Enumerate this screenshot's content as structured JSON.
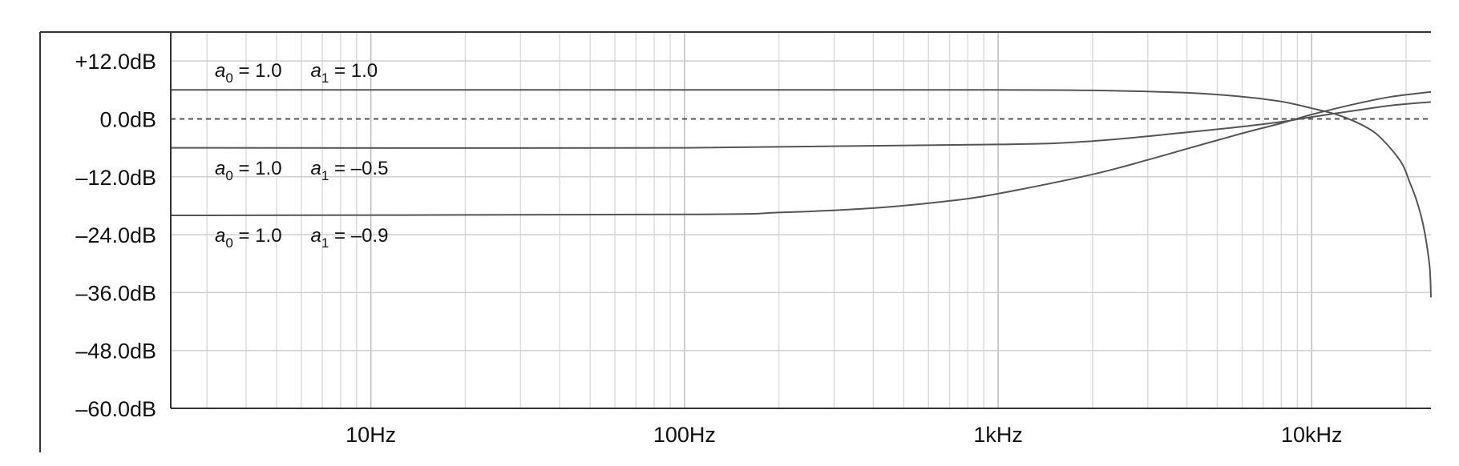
{
  "chart_data": {
    "type": "line",
    "title": "",
    "xlabel": "",
    "ylabel": "",
    "x_scale": "log",
    "xlim": [
      2.3,
      24000
    ],
    "ylim": [
      -60,
      18
    ],
    "grid": true,
    "x_ticks": [
      {
        "value": 10,
        "label": "10Hz"
      },
      {
        "value": 100,
        "label": "100Hz"
      },
      {
        "value": 1000,
        "label": "1kHz"
      },
      {
        "value": 10000,
        "label": "10kHz"
      }
    ],
    "y_ticks": [
      {
        "value": 12,
        "label": "+12.0dB"
      },
      {
        "value": 0,
        "label": "0.0dB"
      },
      {
        "value": -12,
        "label": "–12.0dB"
      },
      {
        "value": -24,
        "label": "–24.0dB"
      },
      {
        "value": -36,
        "label": "–36.0dB"
      },
      {
        "value": -48,
        "label": "–48.0dB"
      },
      {
        "value": -60,
        "label": "–60.0dB"
      }
    ],
    "reference_line": {
      "value": 0,
      "style": "dashed"
    },
    "series": [
      {
        "x": [
          2.3,
          100,
          1000,
          2000,
          4000,
          6000,
          8000,
          10000,
          12000,
          14000,
          16000,
          18000,
          19500,
          20500,
          21500,
          22500,
          23200,
          23800,
          24000
        ],
        "y": [
          6.0,
          6.0,
          6.0,
          5.9,
          5.4,
          4.6,
          3.6,
          2.2,
          0.9,
          -0.8,
          -3.0,
          -6.4,
          -9.5,
          -13.0,
          -16.5,
          -21.0,
          -25.5,
          -31.0,
          -37.0
        ],
        "annotation": {
          "a0": "1.0",
          "a1": "1.0"
        }
      },
      {
        "x": [
          2.3,
          100,
          1000,
          2000,
          4000,
          6000,
          8000,
          10000,
          14000,
          18000,
          24000
        ],
        "y": [
          -6.0,
          -6.0,
          -5.3,
          -4.6,
          -2.8,
          -1.6,
          -0.6,
          0.4,
          1.8,
          2.8,
          3.5
        ],
        "annotation": {
          "a0": "1.0",
          "a1": "–0.5"
        }
      },
      {
        "x": [
          2.3,
          100,
          200,
          400,
          700,
          1000,
          2000,
          3000,
          4000,
          6000,
          8000,
          10000,
          14000,
          18000,
          24000
        ],
        "y": [
          -20.0,
          -19.8,
          -19.4,
          -18.5,
          -17.0,
          -15.5,
          -11.5,
          -8.5,
          -6.2,
          -3.0,
          -0.9,
          0.9,
          3.2,
          4.6,
          5.6
        ],
        "annotation": {
          "a0": "1.0",
          "a1": "–0.9"
        }
      }
    ]
  }
}
